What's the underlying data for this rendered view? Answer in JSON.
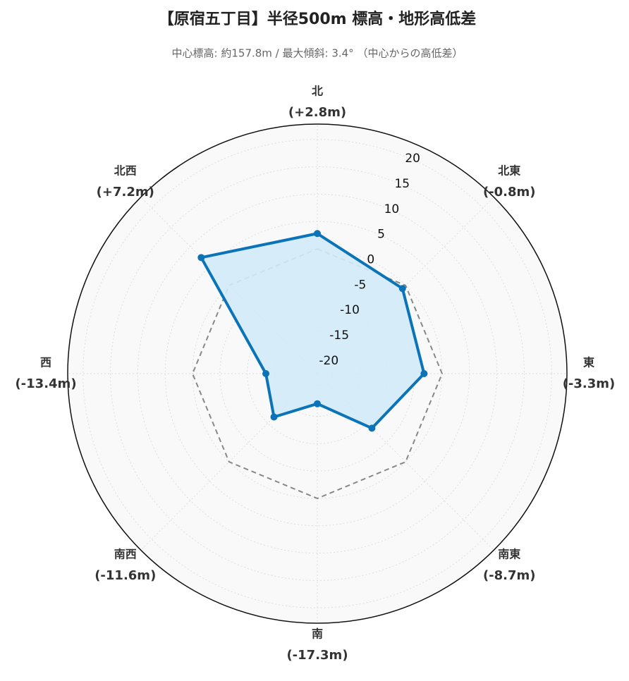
{
  "chart_data": {
    "type": "radar",
    "title": "【原宿五丁目】半径500m 標高・地形高低差",
    "subtitle": "中心標高: 約157.8m / 最大傾斜: 3.4° （中心からの高低差）",
    "categories": [
      "北",
      "北東",
      "東",
      "南東",
      "南",
      "南西",
      "西",
      "北西"
    ],
    "values": [
      2.8,
      -0.8,
      -3.3,
      -8.7,
      -17.3,
      -11.6,
      -13.4,
      7.2
    ],
    "value_labels": [
      "(+2.8m)",
      "(-0.8m)",
      "(-3.3m)",
      "(-8.7m)",
      "(-17.3m)",
      "(-11.6m)",
      "(-13.4m)",
      "(+7.2m)"
    ],
    "color": "#0b74b8",
    "fill_color": "#d2ebf8",
    "reference_value": 0,
    "rlim": [
      -22.8,
      22.8
    ],
    "rticks": [
      -20,
      -15,
      -10,
      -5,
      0,
      5,
      10,
      15,
      20
    ],
    "grid": true
  }
}
